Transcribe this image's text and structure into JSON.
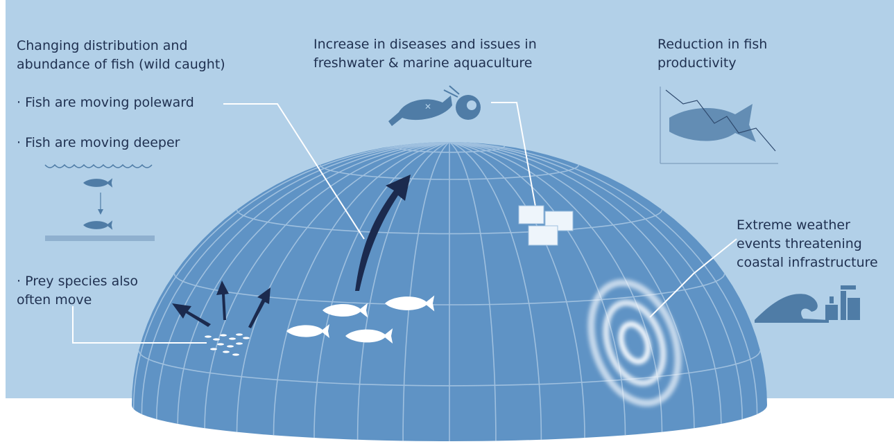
{
  "panels": [
    {
      "lines": [
        "Changing distribution and",
        "abundance of fish (wild caught)"
      ]
    },
    {
      "lines": [
        "· Fish are moving poleward"
      ]
    },
    {
      "lines": [
        "· Fish are moving deeper"
      ]
    },
    {
      "lines": [
        "· Prey species also",
        "often move"
      ]
    },
    {
      "lines": [
        "Increase in diseases and issues in",
        "freshwater & marine aquaculture"
      ]
    },
    {
      "lines": [
        "Reduction in fish",
        "productivity"
      ]
    },
    {
      "lines": [
        "Extreme weather",
        "events threatening",
        "coastal infrastructure"
      ]
    }
  ]
}
